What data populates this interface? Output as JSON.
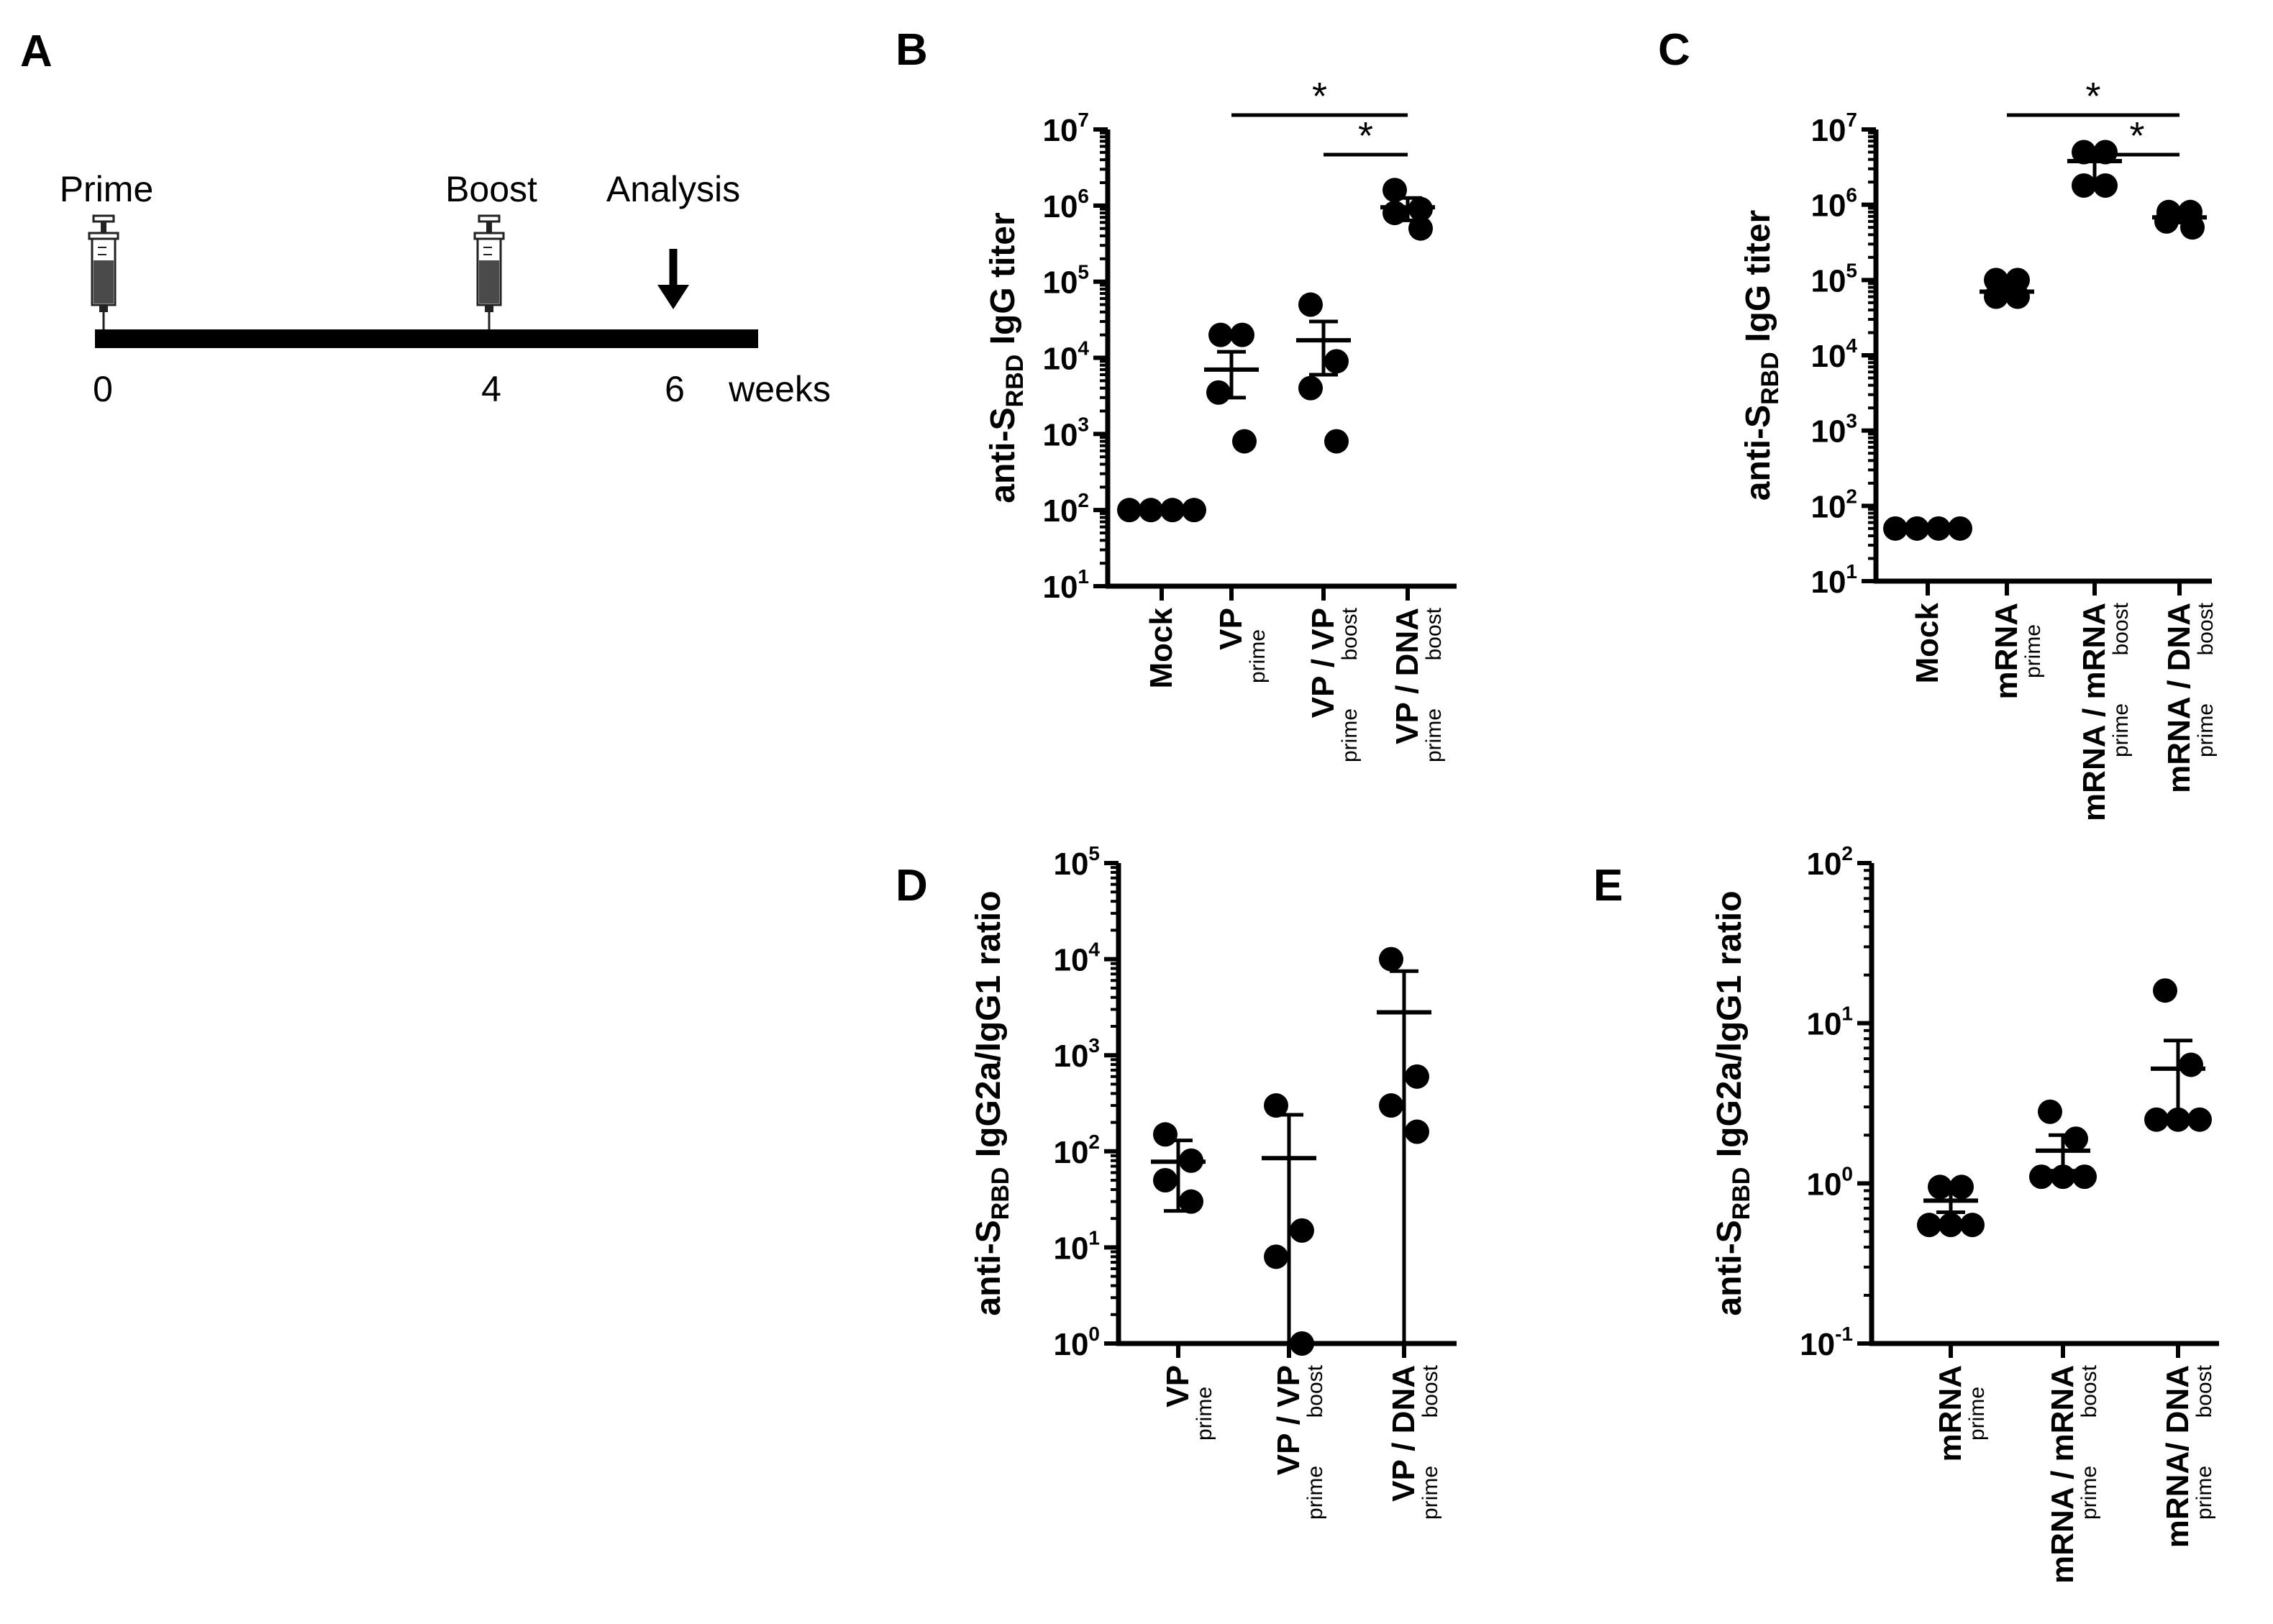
{
  "colors": {
    "ink": "#000000",
    "background": "#ffffff",
    "syringe_fill": "#4a4a4a"
  },
  "icons": {
    "syringe": "syringe-icon",
    "arrow": "down-arrow-icon"
  },
  "timeline": {
    "panel_label": "A",
    "labels": [
      {
        "text": "Prime",
        "at_week": 0
      },
      {
        "text": "Boost",
        "at_week": 4
      },
      {
        "text": "Analysis",
        "at_week": 6
      }
    ],
    "ticks": [
      "0",
      "4",
      "6"
    ],
    "tick_weeks": [
      0,
      4,
      6
    ],
    "unit": "weeks",
    "injections_at_weeks": [
      0,
      4
    ],
    "analysis_at_week": 6,
    "range_weeks": [
      0,
      7
    ]
  },
  "chart_data": [
    {
      "panel": "B",
      "type": "scatter",
      "yscale": "log",
      "ylabel_prefix": "anti-S",
      "ylabel_sub": "RBD",
      "ylabel_suffix": " IgG titer",
      "ylim_exp": [
        1,
        7
      ],
      "categories": [
        {
          "main": "Mock",
          "sub1": "",
          "sub2": ""
        },
        {
          "main": "VP",
          "sub1": "prime",
          "sub2": ""
        },
        {
          "main": "VP / VP",
          "sub1": "prime",
          "sub2": "boost"
        },
        {
          "main": "VP / DNA",
          "sub1": "prime",
          "sub2": "boost"
        }
      ],
      "points": [
        [
          100,
          100,
          100,
          100
        ],
        [
          20000,
          20000,
          3500,
          800
        ],
        [
          50000,
          9000,
          4000,
          800
        ],
        [
          1600000,
          900000,
          800000,
          500000
        ]
      ],
      "means": [
        100,
        7000,
        17000,
        950000
      ],
      "sem_low": [
        100,
        3000,
        6000,
        640000
      ],
      "sem_high": [
        100,
        12000,
        30000,
        1260000
      ],
      "significance": [
        {
          "from": 1,
          "to": 3,
          "label": "*"
        },
        {
          "from": 2,
          "to": 3,
          "label": "*"
        }
      ]
    },
    {
      "panel": "C",
      "type": "scatter",
      "yscale": "log",
      "ylabel_prefix": "anti-S",
      "ylabel_sub": "RBD",
      "ylabel_suffix": " IgG titer",
      "ylim_exp": [
        1,
        7
      ],
      "categories": [
        {
          "main": "Mock",
          "sub1": "",
          "sub2": ""
        },
        {
          "main": "mRNA",
          "sub1": "prime",
          "sub2": ""
        },
        {
          "main": "mRNA / mRNA",
          "sub1": "prime",
          "sub2": "boost"
        },
        {
          "main": "mRNA / DNA",
          "sub1": "prime",
          "sub2": "boost"
        }
      ],
      "points": [
        [
          50,
          50,
          50,
          50
        ],
        [
          100000,
          100000,
          60000,
          60000
        ],
        [
          5000000,
          5000000,
          1800000,
          1800000
        ],
        [
          800000,
          800000,
          600000,
          500000
        ]
      ],
      "means": [
        50,
        70000,
        3800000,
        680000
      ],
      "sem_low": [
        50,
        58000,
        2200000,
        580000
      ],
      "sem_high": [
        50,
        85000,
        5600000,
        780000
      ],
      "significance": [
        {
          "from": 1,
          "to": 3,
          "label": "*"
        },
        {
          "from": 2,
          "to": 3,
          "label": "*"
        }
      ]
    },
    {
      "panel": "D",
      "type": "scatter",
      "yscale": "log",
      "ylabel_prefix": "anti-S",
      "ylabel_sub": "RBD",
      "ylabel_suffix": " IgG2a/IgG1 ratio",
      "ylim_exp": [
        0,
        5
      ],
      "categories": [
        {
          "main": "VP",
          "sub1": "prime",
          "sub2": ""
        },
        {
          "main": "VP / VP",
          "sub1": "prime",
          "sub2": "boost"
        },
        {
          "main": "VP / DNA",
          "sub1": "prime",
          "sub2": "boost"
        }
      ],
      "points": [
        [
          150,
          80,
          50,
          30
        ],
        [
          300,
          15,
          8,
          1
        ],
        [
          10000,
          600,
          300,
          160
        ]
      ],
      "means": [
        78,
        85,
        2800
      ],
      "sem_low": [
        24,
        0,
        0
      ],
      "sem_high": [
        130,
        240,
        7500
      ],
      "significance": []
    },
    {
      "panel": "E",
      "type": "scatter",
      "yscale": "log",
      "ylabel_prefix": "anti-S",
      "ylabel_sub": "RBD",
      "ylabel_suffix": " IgG2a/IgG1 ratio",
      "ylim_exp": [
        -1,
        2
      ],
      "categories": [
        {
          "main": "mRNA",
          "sub1": "prime",
          "sub2": ""
        },
        {
          "main": "mRNA / mRNA",
          "sub1": "prime",
          "sub2": "boost"
        },
        {
          "main": "mRNA/ DNA",
          "sub1": "prime",
          "sub2": "boost"
        }
      ],
      "points": [
        [
          0.95,
          0.95,
          0.55,
          0.55,
          0.55
        ],
        [
          2.8,
          1.9,
          1.1,
          1.1,
          1.1
        ],
        [
          16,
          5.5,
          2.5,
          2.5,
          2.5
        ]
      ],
      "means": [
        0.78,
        1.6,
        5.2
      ],
      "sem_low": [
        0.66,
        1.2,
        2.5
      ],
      "sem_high": [
        0.92,
        2.0,
        7.8
      ],
      "significance": []
    }
  ]
}
